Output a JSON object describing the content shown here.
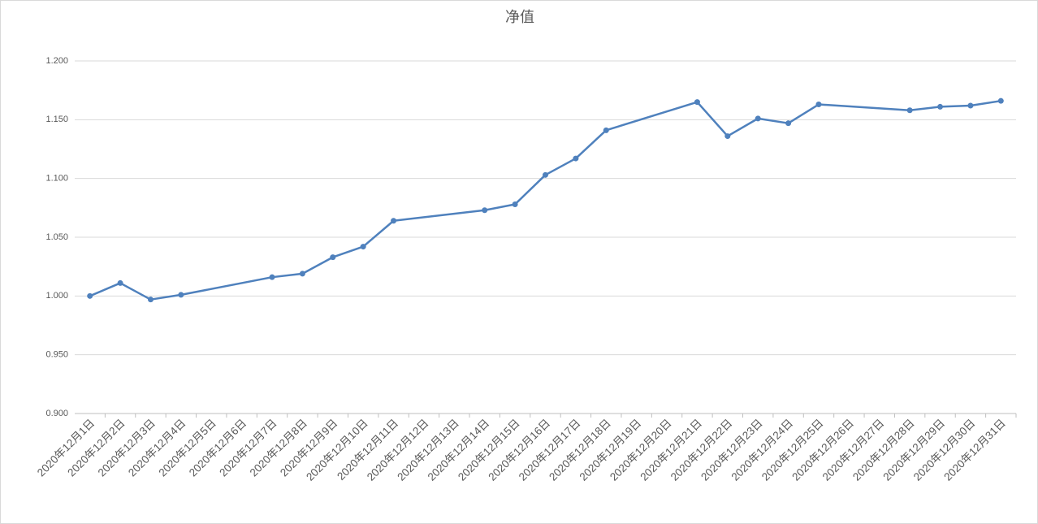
{
  "chart_data": {
    "type": "line",
    "title": "净值",
    "xticks": [
      "2020年12月1日",
      "2020年12月2日",
      "2020年12月3日",
      "2020年12月4日",
      "2020年12月5日",
      "2020年12月6日",
      "2020年12月7日",
      "2020年12月8日",
      "2020年12月9日",
      "2020年12月10日",
      "2020年12月11日",
      "2020年12月12日",
      "2020年12月13日",
      "2020年12月14日",
      "2020年12月15日",
      "2020年12月16日",
      "2020年12月17日",
      "2020年12月18日",
      "2020年12月19日",
      "2020年12月20日",
      "2020年12月21日",
      "2020年12月22日",
      "2020年12月23日",
      "2020年12月24日",
      "2020年12月25日",
      "2020年12月26日",
      "2020年12月27日",
      "2020年12月28日",
      "2020年12月29日",
      "2020年12月30日",
      "2020年12月31日"
    ],
    "x": [
      "2020年12月1日",
      "2020年12月2日",
      "2020年12月3日",
      "2020年12月4日",
      "2020年12月7日",
      "2020年12月8日",
      "2020年12月9日",
      "2020年12月10日",
      "2020年12月11日",
      "2020年12月14日",
      "2020年12月15日",
      "2020年12月16日",
      "2020年12月17日",
      "2020年12月18日",
      "2020年12月21日",
      "2020年12月22日",
      "2020年12月23日",
      "2020年12月24日",
      "2020年12月25日",
      "2020年12月28日",
      "2020年12月29日",
      "2020年12月30日",
      "2020年12月31日"
    ],
    "series": [
      {
        "color": "#4f81bd",
        "values": [
          1.0,
          1.011,
          0.997,
          1.001,
          1.016,
          1.019,
          1.033,
          1.042,
          1.064,
          1.073,
          1.078,
          1.103,
          1.117,
          1.141,
          1.165,
          1.136,
          1.151,
          1.147,
          1.163,
          1.158,
          1.161,
          1.162,
          1.166
        ]
      }
    ],
    "ylim": [
      0.9,
      1.2
    ],
    "yticks": [
      {
        "value": 0.9,
        "label": "0.900"
      },
      {
        "value": 0.95,
        "label": "0.950"
      },
      {
        "value": 1.0,
        "label": "1.000"
      },
      {
        "value": 1.05,
        "label": "1.050"
      },
      {
        "value": 1.1,
        "label": "1.100"
      },
      {
        "value": 1.15,
        "label": "1.150"
      },
      {
        "value": 1.2,
        "label": "1.200"
      }
    ],
    "grid": true
  }
}
